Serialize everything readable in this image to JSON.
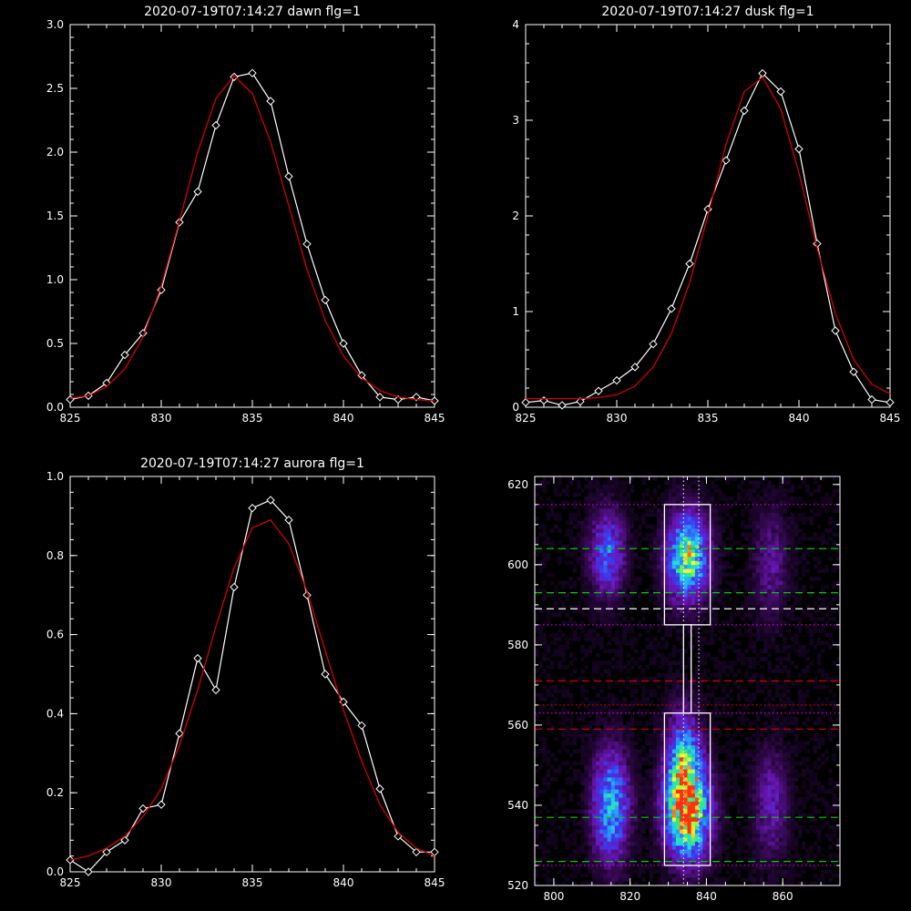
{
  "background": "#000000",
  "colors": {
    "axis": "#ffffff",
    "data_line": "#ffffff",
    "fit_line": "#d40000",
    "green_guide": "#00cc00",
    "red_guide": "#d40000",
    "magenta_guide": "#cc00cc",
    "white_box": "#ffffff"
  },
  "chart_data": [
    {
      "type": "line",
      "title": "2020-07-19T07:14:27 dawn flg=1",
      "xlim": [
        825,
        845
      ],
      "ylim": [
        0,
        3.0
      ],
      "xticks": [
        825,
        830,
        835,
        840,
        845
      ],
      "xtick_labels": [
        "825",
        "830",
        "835",
        "840",
        "845"
      ],
      "yticks": [
        0,
        0.5,
        1.0,
        1.5,
        2.0,
        2.5,
        3.0
      ],
      "ytick_labels": [
        "0.0",
        "0.5",
        "1.0",
        "1.5",
        "2.0",
        "2.5",
        "3.0"
      ],
      "series": [
        {
          "role": "measured",
          "marker": "diamond",
          "x": [
            825,
            826,
            827,
            828,
            829,
            830,
            831,
            832,
            833,
            834,
            835,
            836,
            837,
            838,
            839,
            840,
            841,
            842,
            843,
            844,
            845
          ],
          "values": [
            0.06,
            0.09,
            0.19,
            0.41,
            0.58,
            0.92,
            1.45,
            1.69,
            2.21,
            2.59,
            2.62,
            2.4,
            1.81,
            1.28,
            0.84,
            0.5,
            0.25,
            0.08,
            0.06,
            0.08,
            0.05
          ]
        },
        {
          "role": "fit",
          "x": [
            825,
            826,
            827,
            828,
            829,
            830,
            831,
            832,
            833,
            834,
            835,
            836,
            837,
            838,
            839,
            840,
            841,
            842,
            843,
            844,
            845
          ],
          "values": [
            0.07,
            0.09,
            0.16,
            0.3,
            0.55,
            0.95,
            1.46,
            2.0,
            2.42,
            2.6,
            2.46,
            2.08,
            1.58,
            1.08,
            0.68,
            0.4,
            0.23,
            0.13,
            0.08,
            0.06,
            0.05
          ]
        }
      ]
    },
    {
      "type": "line",
      "title": "2020-07-19T07:14:27 dusk flg=1",
      "xlim": [
        825,
        845
      ],
      "ylim": [
        0,
        4
      ],
      "xticks": [
        825,
        830,
        835,
        840,
        845
      ],
      "xtick_labels": [
        "825",
        "830",
        "835",
        "840",
        "845"
      ],
      "yticks": [
        0,
        1,
        2,
        3,
        4
      ],
      "ytick_labels": [
        "0",
        "1",
        "2",
        "3",
        "4"
      ],
      "series": [
        {
          "role": "measured",
          "marker": "diamond",
          "x": [
            825,
            826,
            827,
            828,
            829,
            830,
            831,
            832,
            833,
            834,
            835,
            836,
            837,
            838,
            839,
            840,
            841,
            842,
            843,
            844,
            845
          ],
          "values": [
            0.05,
            0.07,
            0.02,
            0.06,
            0.17,
            0.28,
            0.42,
            0.66,
            1.03,
            1.5,
            2.07,
            2.58,
            3.1,
            3.49,
            3.3,
            2.7,
            1.71,
            0.8,
            0.37,
            0.08,
            0.05
          ]
        },
        {
          "role": "fit",
          "x": [
            825,
            826,
            827,
            828,
            829,
            830,
            831,
            832,
            833,
            834,
            835,
            836,
            837,
            838,
            839,
            840,
            841,
            842,
            843,
            844,
            845
          ],
          "values": [
            0.09,
            0.09,
            0.09,
            0.09,
            0.1,
            0.13,
            0.22,
            0.42,
            0.77,
            1.3,
            2.0,
            2.75,
            3.3,
            3.45,
            3.12,
            2.45,
            1.66,
            0.98,
            0.5,
            0.24,
            0.14
          ]
        }
      ]
    },
    {
      "type": "line",
      "title": "2020-07-19T07:14:27 aurora flg=1",
      "xlim": [
        825,
        845
      ],
      "ylim": [
        0,
        1.0
      ],
      "xticks": [
        825,
        830,
        835,
        840,
        845
      ],
      "xtick_labels": [
        "825",
        "830",
        "835",
        "840",
        "845"
      ],
      "yticks": [
        0,
        0.2,
        0.4,
        0.6,
        0.8,
        1.0
      ],
      "ytick_labels": [
        "0.0",
        "0.2",
        "0.4",
        "0.6",
        "0.8",
        "1.0"
      ],
      "series": [
        {
          "role": "measured",
          "marker": "diamond",
          "x": [
            825,
            826,
            827,
            828,
            829,
            830,
            831,
            832,
            833,
            834,
            835,
            836,
            837,
            838,
            839,
            840,
            841,
            842,
            843,
            844,
            845
          ],
          "values": [
            0.03,
            0.0,
            0.05,
            0.08,
            0.16,
            0.17,
            0.35,
            0.54,
            0.46,
            0.72,
            0.92,
            0.94,
            0.89,
            0.7,
            0.5,
            0.43,
            0.37,
            0.21,
            0.09,
            0.05,
            0.05
          ]
        },
        {
          "role": "fit",
          "x": [
            825,
            826,
            827,
            828,
            829,
            830,
            831,
            832,
            833,
            834,
            835,
            836,
            837,
            838,
            839,
            840,
            841,
            842,
            843,
            844,
            845
          ],
          "values": [
            0.03,
            0.04,
            0.06,
            0.09,
            0.14,
            0.21,
            0.32,
            0.46,
            0.62,
            0.77,
            0.87,
            0.89,
            0.83,
            0.71,
            0.56,
            0.41,
            0.28,
            0.17,
            0.1,
            0.06,
            0.04
          ]
        }
      ]
    },
    {
      "type": "heatmap",
      "title": "",
      "xlim": [
        795,
        875
      ],
      "ylim": [
        520,
        622
      ],
      "xticks": [
        800,
        820,
        840,
        860
      ],
      "xtick_labels": [
        "800",
        "820",
        "840",
        "860"
      ],
      "yticks": [
        520,
        540,
        560,
        580,
        600,
        620
      ],
      "ytick_labels": [
        "520",
        "540",
        "560",
        "580",
        "600",
        "620"
      ],
      "colormap": [
        "#000000",
        "#3a0a5a",
        "#6a16b8",
        "#3a3af0",
        "#2a8cff",
        "#20d8e8",
        "#30f070",
        "#ffff20",
        "#ff3010"
      ],
      "blobs": [
        {
          "x": 814,
          "y": 603,
          "sx": 3.0,
          "sy": 7,
          "amp": 0.4
        },
        {
          "x": 815,
          "y": 540,
          "sx": 3.2,
          "sy": 9,
          "amp": 0.55
        },
        {
          "x": 835,
          "y": 602,
          "sx": 3.6,
          "sy": 7,
          "amp": 0.75
        },
        {
          "x": 835,
          "y": 539,
          "sx": 3.8,
          "sy": 8,
          "amp": 1.0
        },
        {
          "x": 834,
          "y": 552,
          "sx": 3.0,
          "sy": 8,
          "amp": 0.45
        },
        {
          "x": 857,
          "y": 600,
          "sx": 3.0,
          "sy": 9,
          "amp": 0.18
        },
        {
          "x": 857,
          "y": 540,
          "sx": 3.0,
          "sy": 9,
          "amp": 0.22
        }
      ],
      "boxes": [
        {
          "x0": 829,
          "x1": 841,
          "y0": 585,
          "y1": 615
        },
        {
          "x0": 829,
          "x1": 841,
          "y0": 525,
          "y1": 563
        },
        {
          "x0": 834,
          "x1": 836,
          "y0": 563,
          "y1": 585
        }
      ],
      "vlines_dotted": [
        834,
        838
      ],
      "hlines": [
        {
          "y": 615,
          "color": "magenta_guide",
          "style": "dotted"
        },
        {
          "y": 604,
          "color": "green_guide",
          "style": "dashed"
        },
        {
          "y": 593,
          "color": "green_guide",
          "style": "dashed"
        },
        {
          "y": 589,
          "color": "white_box",
          "style": "dashed"
        },
        {
          "y": 585,
          "color": "magenta_guide",
          "style": "dotted"
        },
        {
          "y": 571,
          "color": "red_guide",
          "style": "dashed"
        },
        {
          "y": 565,
          "color": "red_guide",
          "style": "dotted"
        },
        {
          "y": 563,
          "color": "magenta_guide",
          "style": "dotted"
        },
        {
          "y": 559,
          "color": "red_guide",
          "style": "dashed"
        },
        {
          "y": 537,
          "color": "green_guide",
          "style": "dashed"
        },
        {
          "y": 526,
          "color": "green_guide",
          "style": "dashed"
        },
        {
          "y": 525,
          "color": "magenta_guide",
          "style": "dotted"
        }
      ]
    }
  ]
}
